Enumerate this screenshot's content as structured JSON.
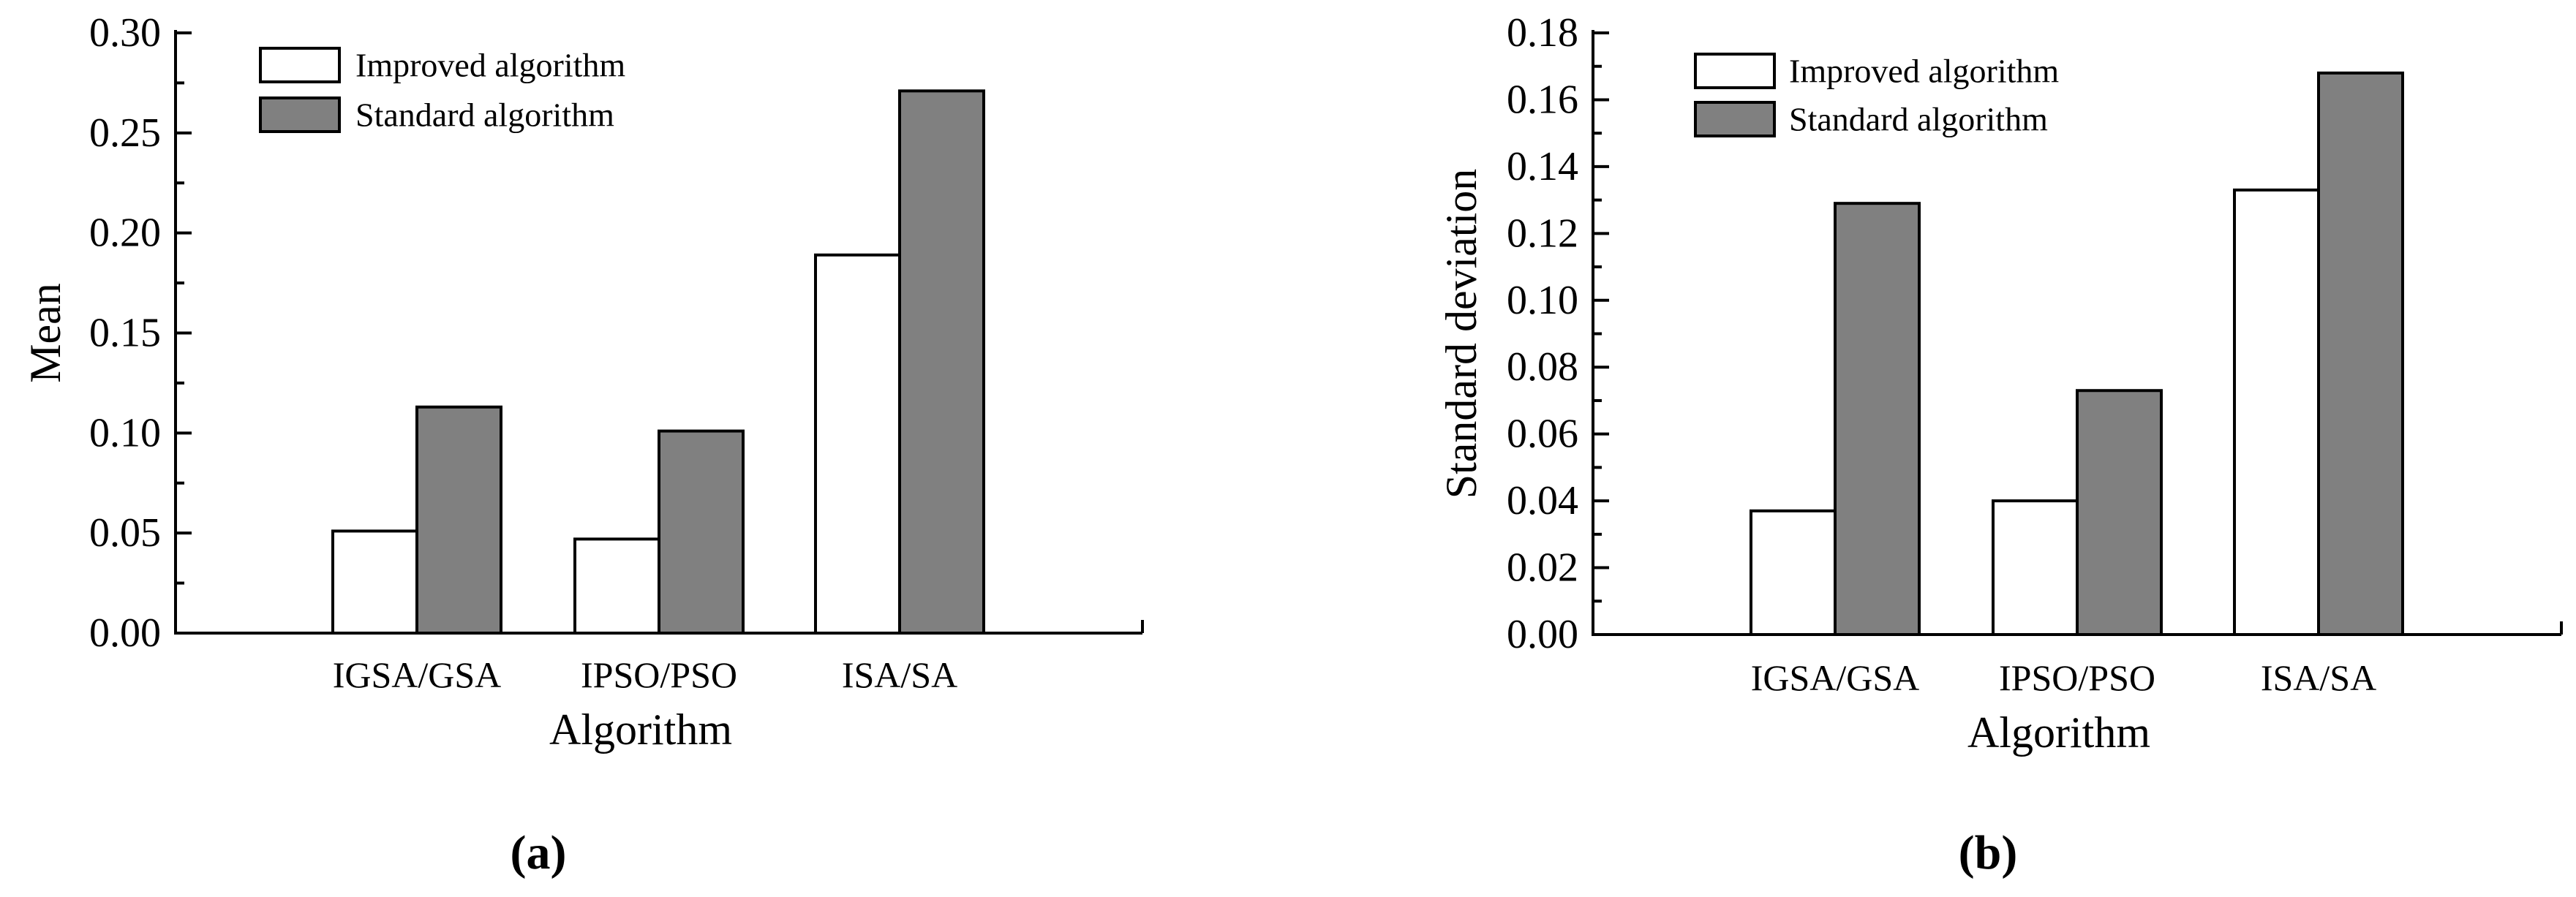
{
  "chart_data": [
    {
      "type": "bar",
      "panel_label": "(a)",
      "categories": [
        "IGSA/GSA",
        "IPSO/PSO",
        "ISA/SA"
      ],
      "series": [
        {
          "name": "Improved algorithm",
          "values": [
            0.051,
            0.047,
            0.189
          ],
          "color": "#ffffff"
        },
        {
          "name": "Standard algorithm",
          "values": [
            0.113,
            0.101,
            0.271
          ],
          "color": "#808080"
        }
      ],
      "xlabel": "Algorithm",
      "ylabel": "Mean",
      "ylim": [
        0,
        0.3
      ],
      "yticks": [
        "0.00",
        "0.05",
        "0.10",
        "0.15",
        "0.20",
        "0.25",
        "0.30"
      ],
      "grid": false,
      "legend_position": "top-left"
    },
    {
      "type": "bar",
      "panel_label": "(b)",
      "categories": [
        "IGSA/GSA",
        "IPSO/PSO",
        "ISA/SA"
      ],
      "series": [
        {
          "name": "Improved algorithm",
          "values": [
            0.037,
            0.04,
            0.133
          ],
          "color": "#ffffff"
        },
        {
          "name": "Standard algorithm",
          "values": [
            0.129,
            0.073,
            0.168
          ],
          "color": "#808080"
        }
      ],
      "xlabel": "Algorithm",
      "ylabel": "Standard deviation",
      "ylim": [
        0,
        0.18
      ],
      "yticks": [
        "0.00",
        "0.02",
        "0.04",
        "0.06",
        "0.08",
        "0.10",
        "0.12",
        "0.14",
        "0.16",
        "0.18"
      ],
      "grid": false,
      "legend_position": "top-left"
    }
  ]
}
